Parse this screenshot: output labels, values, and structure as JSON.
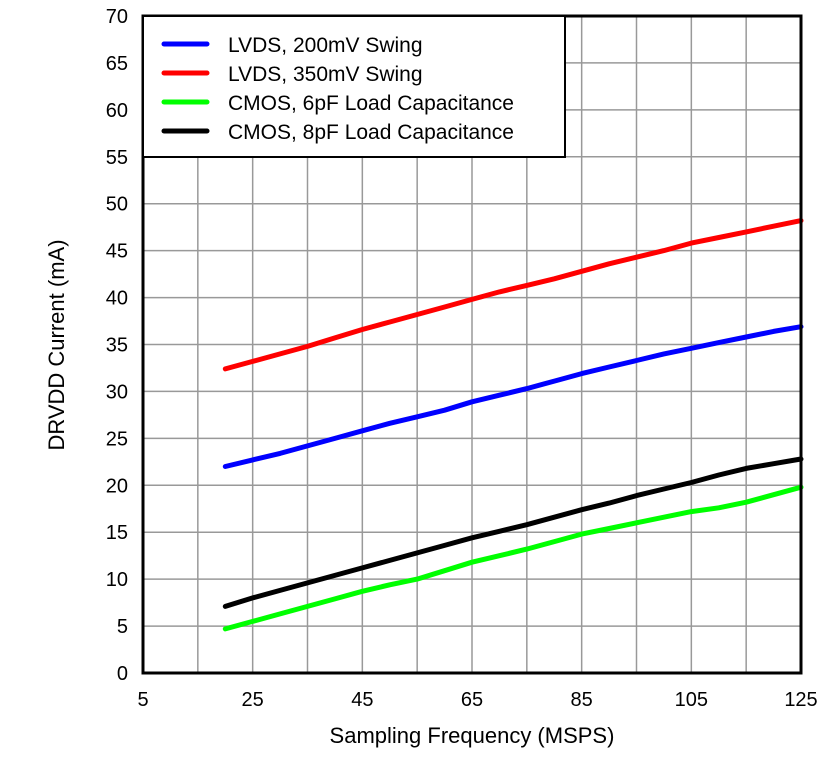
{
  "chart_data": {
    "type": "line",
    "title": "",
    "xlabel": "Sampling Frequency (MSPS)",
    "ylabel": "DRVDD Current (mA)",
    "xlim": [
      5,
      125
    ],
    "ylim": [
      0,
      70
    ],
    "xticks": [
      5,
      25,
      45,
      65,
      85,
      105,
      125
    ],
    "yticks": [
      0,
      5,
      10,
      15,
      20,
      25,
      30,
      35,
      40,
      45,
      50,
      55,
      60,
      65,
      70
    ],
    "x_minor_step": 10,
    "grid": true,
    "legend_position": "top-left",
    "x": [
      20,
      25,
      30,
      35,
      40,
      45,
      50,
      55,
      60,
      65,
      70,
      75,
      80,
      85,
      90,
      95,
      100,
      105,
      110,
      115,
      120,
      125
    ],
    "series": [
      {
        "name": "LVDS, 200mV Swing",
        "color": "#0000ff",
        "values": [
          22.0,
          22.7,
          23.4,
          24.2,
          25.0,
          25.8,
          26.6,
          27.3,
          28.0,
          28.9,
          29.6,
          30.3,
          31.1,
          31.9,
          32.6,
          33.3,
          34.0,
          34.6,
          35.2,
          35.8,
          36.4,
          36.9
        ]
      },
      {
        "name": "LVDS, 350mV Swing",
        "color": "#ff0000",
        "values": [
          32.4,
          33.2,
          34.0,
          34.8,
          35.7,
          36.6,
          37.4,
          38.2,
          39.0,
          39.8,
          40.6,
          41.3,
          42.0,
          42.8,
          43.6,
          44.3,
          45.0,
          45.8,
          46.4,
          47.0,
          47.6,
          48.2
        ]
      },
      {
        "name": "CMOS, 6pF Load Capacitance",
        "color": "#00ff00",
        "values": [
          4.7,
          5.5,
          6.3,
          7.1,
          7.9,
          8.7,
          9.4,
          10.0,
          10.9,
          11.8,
          12.5,
          13.2,
          14.0,
          14.8,
          15.4,
          16.0,
          16.6,
          17.2,
          17.6,
          18.2,
          19.0,
          19.8
        ]
      },
      {
        "name": "CMOS, 8pF Load Capacitance",
        "color": "#000000",
        "values": [
          7.1,
          8.0,
          8.8,
          9.6,
          10.4,
          11.2,
          12.0,
          12.8,
          13.6,
          14.4,
          15.1,
          15.8,
          16.6,
          17.4,
          18.1,
          18.9,
          19.6,
          20.3,
          21.1,
          21.8,
          22.3,
          22.8
        ]
      }
    ]
  }
}
